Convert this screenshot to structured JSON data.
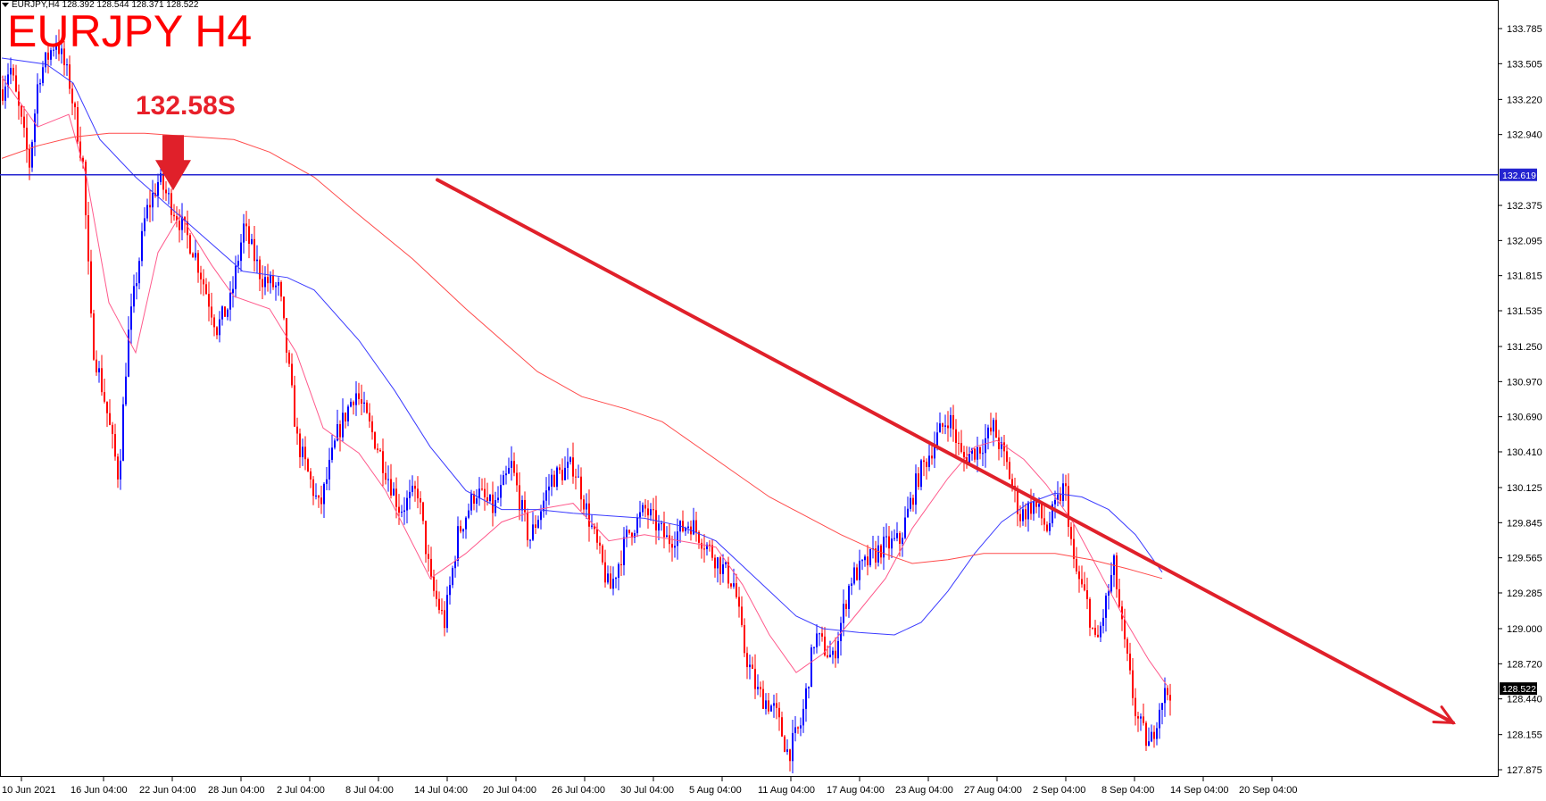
{
  "header": {
    "info_line": "EURJPY,H4  128.392 128.544 128.371 128.522",
    "title": "EURJPY H4",
    "annotation": "132.58S"
  },
  "colors": {
    "bull_candle": "#0000ff",
    "bear_candle": "#ff0000",
    "ma_fast": "#ff5a8c",
    "ma_mid": "#3b3bff",
    "ma_slow": "#ff4b4b",
    "level_line": "#2424d0",
    "trend_arrow": "#e0202a",
    "axis": "#000000"
  },
  "chart_data": {
    "type": "candlestick",
    "symbol": "EURJPY",
    "timeframe": "H4",
    "ylim": [
      127.73,
      133.96
    ],
    "y_ticks": [
      "133.785",
      "133.505",
      "133.220",
      "132.940",
      "132.375",
      "132.095",
      "131.815",
      "131.535",
      "131.250",
      "130.970",
      "130.690",
      "130.410",
      "130.125",
      "129.845",
      "129.565",
      "129.285",
      "129.000",
      "128.720",
      "128.440",
      "128.155",
      "127.875"
    ],
    "x_ticks": [
      "10 Jun 2021",
      "16 Jun 04:00",
      "22 Jun 04:00",
      "28 Jun 04:00",
      "2 Jul 04:00",
      "8 Jul 04:00",
      "14 Jul 04:00",
      "20 Jul 04:00",
      "26 Jul 04:00",
      "30 Jul 04:00",
      "5 Aug 04:00",
      "11 Aug 04:00",
      "17 Aug 04:00",
      "23 Aug 04:00",
      "27 Aug 04:00",
      "2 Sep 04:00",
      "8 Sep 04:00",
      "14 Sep 04:00",
      "20 Sep 04:00"
    ],
    "price_path": [
      [
        0,
        133.3
      ],
      [
        8,
        133.5
      ],
      [
        30,
        132.7
      ],
      [
        40,
        133.4
      ],
      [
        60,
        133.7
      ],
      [
        75,
        133.35
      ],
      [
        90,
        132.7
      ],
      [
        100,
        131.3
      ],
      [
        115,
        130.8
      ],
      [
        130,
        130.2
      ],
      [
        140,
        131.3
      ],
      [
        160,
        132.3
      ],
      [
        175,
        132.58
      ],
      [
        195,
        132.3
      ],
      [
        215,
        132.0
      ],
      [
        240,
        131.4
      ],
      [
        255,
        131.6
      ],
      [
        270,
        132.2
      ],
      [
        290,
        131.8
      ],
      [
        310,
        131.7
      ],
      [
        330,
        130.5
      ],
      [
        355,
        129.95
      ],
      [
        375,
        130.55
      ],
      [
        395,
        130.9
      ],
      [
        420,
        130.45
      ],
      [
        445,
        129.95
      ],
      [
        465,
        130.1
      ],
      [
        480,
        129.35
      ],
      [
        495,
        129.05
      ],
      [
        510,
        129.75
      ],
      [
        530,
        130.1
      ],
      [
        550,
        129.95
      ],
      [
        570,
        130.3
      ],
      [
        590,
        129.7
      ],
      [
        615,
        130.2
      ],
      [
        640,
        130.3
      ],
      [
        660,
        129.8
      ],
      [
        680,
        129.3
      ],
      [
        700,
        129.75
      ],
      [
        720,
        129.95
      ],
      [
        745,
        129.7
      ],
      [
        770,
        129.85
      ],
      [
        800,
        129.55
      ],
      [
        820,
        129.35
      ],
      [
        830,
        128.85
      ],
      [
        845,
        128.5
      ],
      [
        865,
        128.35
      ],
      [
        880,
        128.0
      ],
      [
        895,
        128.25
      ],
      [
        910,
        128.95
      ],
      [
        930,
        128.75
      ],
      [
        950,
        129.4
      ],
      [
        965,
        129.5
      ],
      [
        985,
        129.65
      ],
      [
        1005,
        129.7
      ],
      [
        1025,
        130.2
      ],
      [
        1045,
        130.5
      ],
      [
        1060,
        130.7
      ],
      [
        1075,
        130.35
      ],
      [
        1095,
        130.45
      ],
      [
        1110,
        130.6
      ],
      [
        1125,
        130.3
      ],
      [
        1140,
        129.9
      ],
      [
        1155,
        130.0
      ],
      [
        1170,
        129.8
      ],
      [
        1190,
        130.15
      ],
      [
        1200,
        129.5
      ],
      [
        1215,
        129.2
      ],
      [
        1225,
        128.85
      ],
      [
        1245,
        129.5
      ],
      [
        1255,
        128.95
      ],
      [
        1270,
        128.3
      ],
      [
        1285,
        128.05
      ],
      [
        1298,
        128.45
      ],
      [
        1310,
        128.52
      ]
    ],
    "series": [
      {
        "name": "",
        "key": "ma_fast",
        "points": [
          [
            0,
            133.4
          ],
          [
            40,
            133.0
          ],
          [
            75,
            133.1
          ],
          [
            95,
            132.6
          ],
          [
            120,
            131.6
          ],
          [
            150,
            131.2
          ],
          [
            175,
            132.0
          ],
          [
            200,
            132.3
          ],
          [
            235,
            131.9
          ],
          [
            260,
            131.65
          ],
          [
            300,
            131.55
          ],
          [
            330,
            131.2
          ],
          [
            360,
            130.6
          ],
          [
            400,
            130.4
          ],
          [
            430,
            130.1
          ],
          [
            480,
            129.4
          ],
          [
            520,
            129.6
          ],
          [
            560,
            129.85
          ],
          [
            600,
            129.95
          ],
          [
            640,
            130.0
          ],
          [
            680,
            129.7
          ],
          [
            720,
            129.75
          ],
          [
            760,
            129.7
          ],
          [
            800,
            129.65
          ],
          [
            830,
            129.35
          ],
          [
            860,
            128.95
          ],
          [
            890,
            128.65
          ],
          [
            920,
            128.8
          ],
          [
            950,
            129.05
          ],
          [
            990,
            129.4
          ],
          [
            1020,
            129.8
          ],
          [
            1060,
            130.2
          ],
          [
            1090,
            130.45
          ],
          [
            1115,
            130.5
          ],
          [
            1145,
            130.35
          ],
          [
            1170,
            130.15
          ],
          [
            1200,
            129.85
          ],
          [
            1230,
            129.45
          ],
          [
            1260,
            129.05
          ],
          [
            1285,
            128.75
          ],
          [
            1305,
            128.55
          ]
        ]
      },
      {
        "name": "",
        "key": "ma_mid",
        "points": [
          [
            0,
            133.55
          ],
          [
            50,
            133.5
          ],
          [
            80,
            133.35
          ],
          [
            110,
            132.9
          ],
          [
            150,
            132.6
          ],
          [
            190,
            132.35
          ],
          [
            230,
            132.1
          ],
          [
            270,
            131.85
          ],
          [
            320,
            131.8
          ],
          [
            350,
            131.7
          ],
          [
            400,
            131.3
          ],
          [
            440,
            130.9
          ],
          [
            480,
            130.45
          ],
          [
            520,
            130.1
          ],
          [
            560,
            129.95
          ],
          [
            600,
            129.95
          ],
          [
            640,
            129.92
          ],
          [
            680,
            129.9
          ],
          [
            720,
            129.88
          ],
          [
            760,
            129.82
          ],
          [
            800,
            129.7
          ],
          [
            830,
            129.5
          ],
          [
            860,
            129.3
          ],
          [
            890,
            129.1
          ],
          [
            920,
            129.0
          ],
          [
            960,
            128.97
          ],
          [
            1000,
            128.95
          ],
          [
            1030,
            129.05
          ],
          [
            1060,
            129.3
          ],
          [
            1090,
            129.6
          ],
          [
            1120,
            129.85
          ],
          [
            1150,
            130.0
          ],
          [
            1180,
            130.08
          ],
          [
            1210,
            130.05
          ],
          [
            1240,
            129.95
          ],
          [
            1270,
            129.75
          ],
          [
            1300,
            129.45
          ]
        ]
      },
      {
        "name": "",
        "key": "ma_slow",
        "points": [
          [
            0,
            132.75
          ],
          [
            40,
            132.85
          ],
          [
            80,
            132.92
          ],
          [
            120,
            132.95
          ],
          [
            160,
            132.95
          ],
          [
            200,
            132.93
          ],
          [
            260,
            132.9
          ],
          [
            300,
            132.8
          ],
          [
            350,
            132.6
          ],
          [
            400,
            132.3
          ],
          [
            460,
            131.95
          ],
          [
            520,
            131.55
          ],
          [
            560,
            131.3
          ],
          [
            600,
            131.05
          ],
          [
            650,
            130.85
          ],
          [
            700,
            130.75
          ],
          [
            740,
            130.65
          ],
          [
            780,
            130.45
          ],
          [
            820,
            130.25
          ],
          [
            860,
            130.05
          ],
          [
            900,
            129.9
          ],
          [
            940,
            129.75
          ],
          [
            980,
            129.62
          ],
          [
            1020,
            129.52
          ],
          [
            1060,
            129.55
          ],
          [
            1100,
            129.6
          ],
          [
            1140,
            129.6
          ],
          [
            1180,
            129.6
          ],
          [
            1220,
            129.55
          ],
          [
            1260,
            129.48
          ],
          [
            1300,
            129.4
          ]
        ]
      }
    ],
    "horizontal_level": {
      "value": 132.619,
      "label": "132.619"
    },
    "current_price": {
      "value": 128.522,
      "label": "128.522"
    },
    "annotation_marker": {
      "label": "132.58S",
      "target_price": 132.58,
      "target_index": 175
    },
    "trend_line": {
      "start_index": 445,
      "start_price": 132.6,
      "end_index": 1480,
      "end_price": 128.25
    }
  }
}
